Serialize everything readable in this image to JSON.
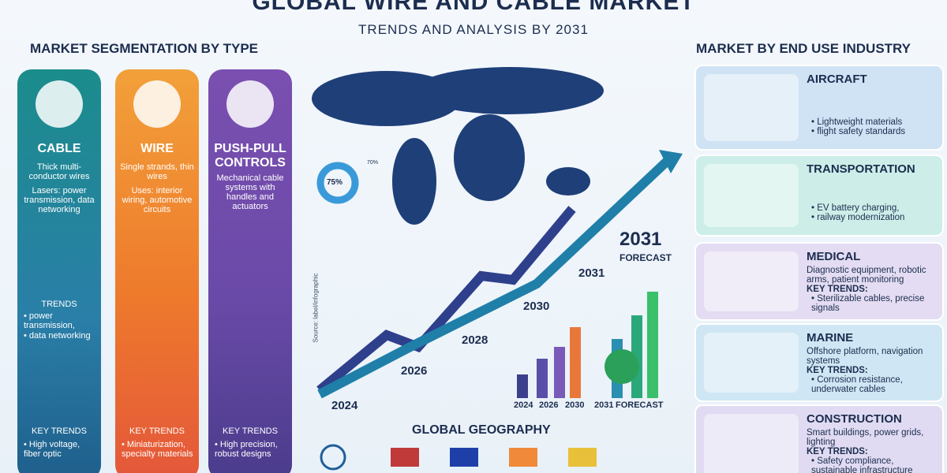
{
  "header": {
    "title": "GLOBAL WIRE AND CABLE MARKET",
    "subtitle": "TRENDS AND ANALYSIS BY 2031"
  },
  "segmentation": {
    "heading": "MARKET SEGMENTATION BY TYPE",
    "types": [
      {
        "name": "CABLE",
        "description": "Thick multi-conductor wires",
        "uses": "Lasers: power transmission, data networking",
        "trends_heading": "TRENDS",
        "trends": [
          "power transmission,",
          "data networking"
        ],
        "key_trends_heading": "KEY TRENDS",
        "key_trends": "High voltage, fiber optic"
      },
      {
        "name": "WIRE",
        "description": "Single strands, thin wires",
        "uses": "Uses: interior wiring, automotive circuits",
        "key_trends_heading": "KEY TRENDS",
        "key_trends": "Miniaturization, specialty materials"
      },
      {
        "name": "PUSH-PULL CONTROLS",
        "description": "Mechanical cable systems with handles and actuators",
        "key_trends_heading": "KEY TRENDS",
        "key_trends": "High precision, robust designs"
      }
    ]
  },
  "center": {
    "donut_label": "75%",
    "donut_note": "70%",
    "source": "Source: label/infographic",
    "timeline": [
      "2024",
      "2026",
      "2028",
      "2030",
      "2031"
    ],
    "forecast": "2031",
    "forecast_label": "FORECAST",
    "bar_labels": [
      "2024",
      "2026",
      "2030",
      "2031",
      "FORECAST"
    ],
    "geography": "GLOBAL GEOGRAPHY"
  },
  "industries": {
    "heading": "MARKET BY END USE INDUSTRY",
    "items": [
      {
        "name": "AIRCRAFT",
        "bullets": [
          "Lightweight materials",
          "flight safety standards"
        ]
      },
      {
        "name": "TRANSPORTATION",
        "bullets": [
          "EV battery charging,",
          "railway modernization"
        ]
      },
      {
        "name": "MEDICAL",
        "description": "Diagnostic equipment, robotic arms, patient monitoring",
        "trends_heading": "KEY TRENDS:",
        "bullets": [
          "Sterilizable cables, precise signals"
        ]
      },
      {
        "name": "MARINE",
        "description": "Offshore platform, navigation systems",
        "trends_heading": "KEY TRENDS:",
        "bullets": [
          "Corrosion resistance, underwater cables"
        ]
      },
      {
        "name": "CONSTRUCTION",
        "description": "Smart buildings, power grids, lighting",
        "trends_heading": "KEY TRENDS:",
        "bullets": [
          "Safety compliance, sustainable infrastructure"
        ]
      }
    ]
  }
}
